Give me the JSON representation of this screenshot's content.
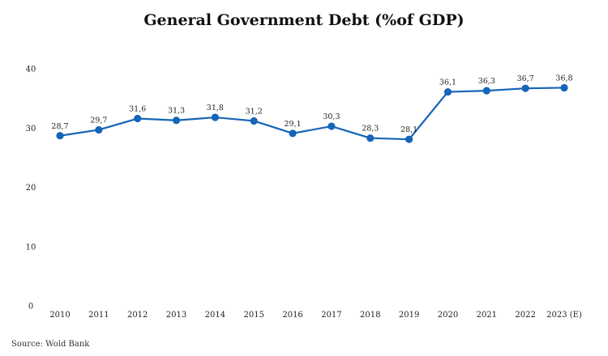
{
  "chart_data": {
    "type": "line",
    "title": "General Government Debt (%of GDP)",
    "categories": [
      "2010",
      "2011",
      "2012",
      "2013",
      "2014",
      "2015",
      "2016",
      "2017",
      "2018",
      "2019",
      "2020",
      "2021",
      "2022",
      "2023 (E)"
    ],
    "series": [
      {
        "values": [
          28.7,
          29.7,
          31.6,
          31.3,
          31.8,
          31.2,
          29.1,
          30.3,
          28.3,
          28.1,
          36.1,
          36.3,
          36.7,
          36.8
        ],
        "labels": [
          "28,7",
          "29,7",
          "31,6",
          "31,3",
          "31,8",
          "31,2",
          "29,1",
          "30,3",
          "28,3",
          "28,1",
          "36,1",
          "36,3",
          "36,7",
          "36,8"
        ],
        "color": "#1565b8"
      }
    ],
    "ylim": [
      0,
      40
    ],
    "yticks": [
      "0",
      "10",
      "20",
      "30",
      "40"
    ],
    "xlabel": "",
    "ylabel": "",
    "grid": false,
    "legend": false
  },
  "source": "Source: Wold Bank"
}
